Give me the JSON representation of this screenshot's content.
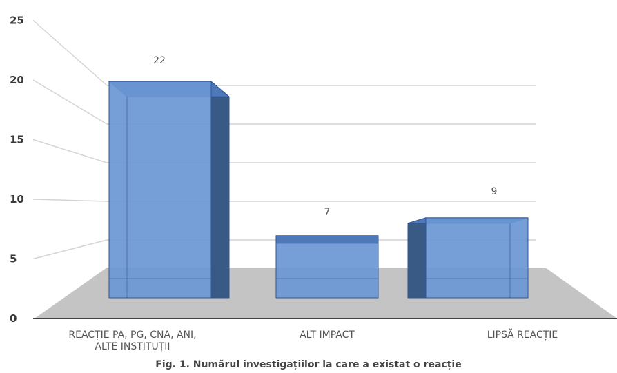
{
  "caption": "Fig. 1. Numărul investigațiilor la care a existat o reacție",
  "chart_data": {
    "type": "bar",
    "title": "",
    "xlabel": "",
    "ylabel": "",
    "categories": [
      [
        "REACȚIE PA, PG, CNA, ANI,",
        "ALTE INSTITUȚII"
      ],
      [
        "ALT IMPACT"
      ],
      [
        "LIPSĂ REACȚIE"
      ]
    ],
    "values": [
      22,
      7,
      9
    ],
    "data_labels": [
      "22",
      "7",
      "9"
    ],
    "yticks": [
      "0",
      "5",
      "10",
      "15",
      "20",
      "25"
    ],
    "ylim": [
      0,
      25
    ],
    "grid": true,
    "legend": "none",
    "colors": {
      "bar_front": "#6b97d4",
      "bar_top": "#4f78b8",
      "bar_side": "#3a5a86",
      "bar_edge": "#2f5597",
      "floor": "#c4c4c4",
      "grid": "#d4d4d4",
      "axis": "#404040"
    }
  }
}
